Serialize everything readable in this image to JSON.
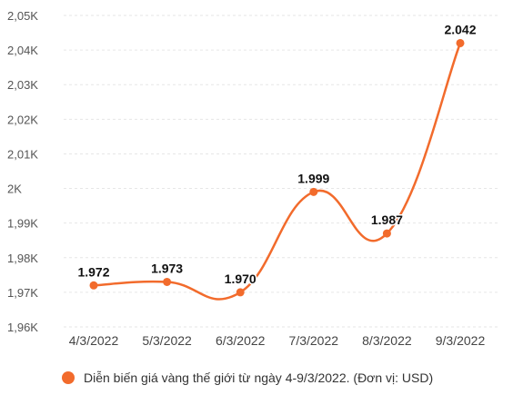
{
  "chart_data": {
    "type": "line",
    "categories": [
      "4/3/2022",
      "5/3/2022",
      "6/3/2022",
      "7/3/2022",
      "8/3/2022",
      "9/3/2022"
    ],
    "series": [
      {
        "name": "Diễn biến giá vàng thế giới từ ngày 4-9/3/2022. (Đơn vị: USD)",
        "values": [
          1972,
          1973,
          1970,
          1999,
          1987,
          2042
        ],
        "value_labels": [
          "1.972",
          "1.973",
          "1.970",
          "1.999",
          "1.987",
          "2.042"
        ],
        "color": "#f26b2c"
      }
    ],
    "y_ticks": [
      1960,
      1970,
      1980,
      1990,
      2000,
      2010,
      2020,
      2030,
      2040,
      2050
    ],
    "y_tick_labels": [
      "1,96K",
      "1,97K",
      "1,98K",
      "1,99K",
      "2K",
      "2,01K",
      "2,02K",
      "2,03K",
      "2,04K",
      "2,05K"
    ],
    "ylim": [
      1960,
      2050
    ],
    "grid": true,
    "legend_position": "bottom-left"
  }
}
